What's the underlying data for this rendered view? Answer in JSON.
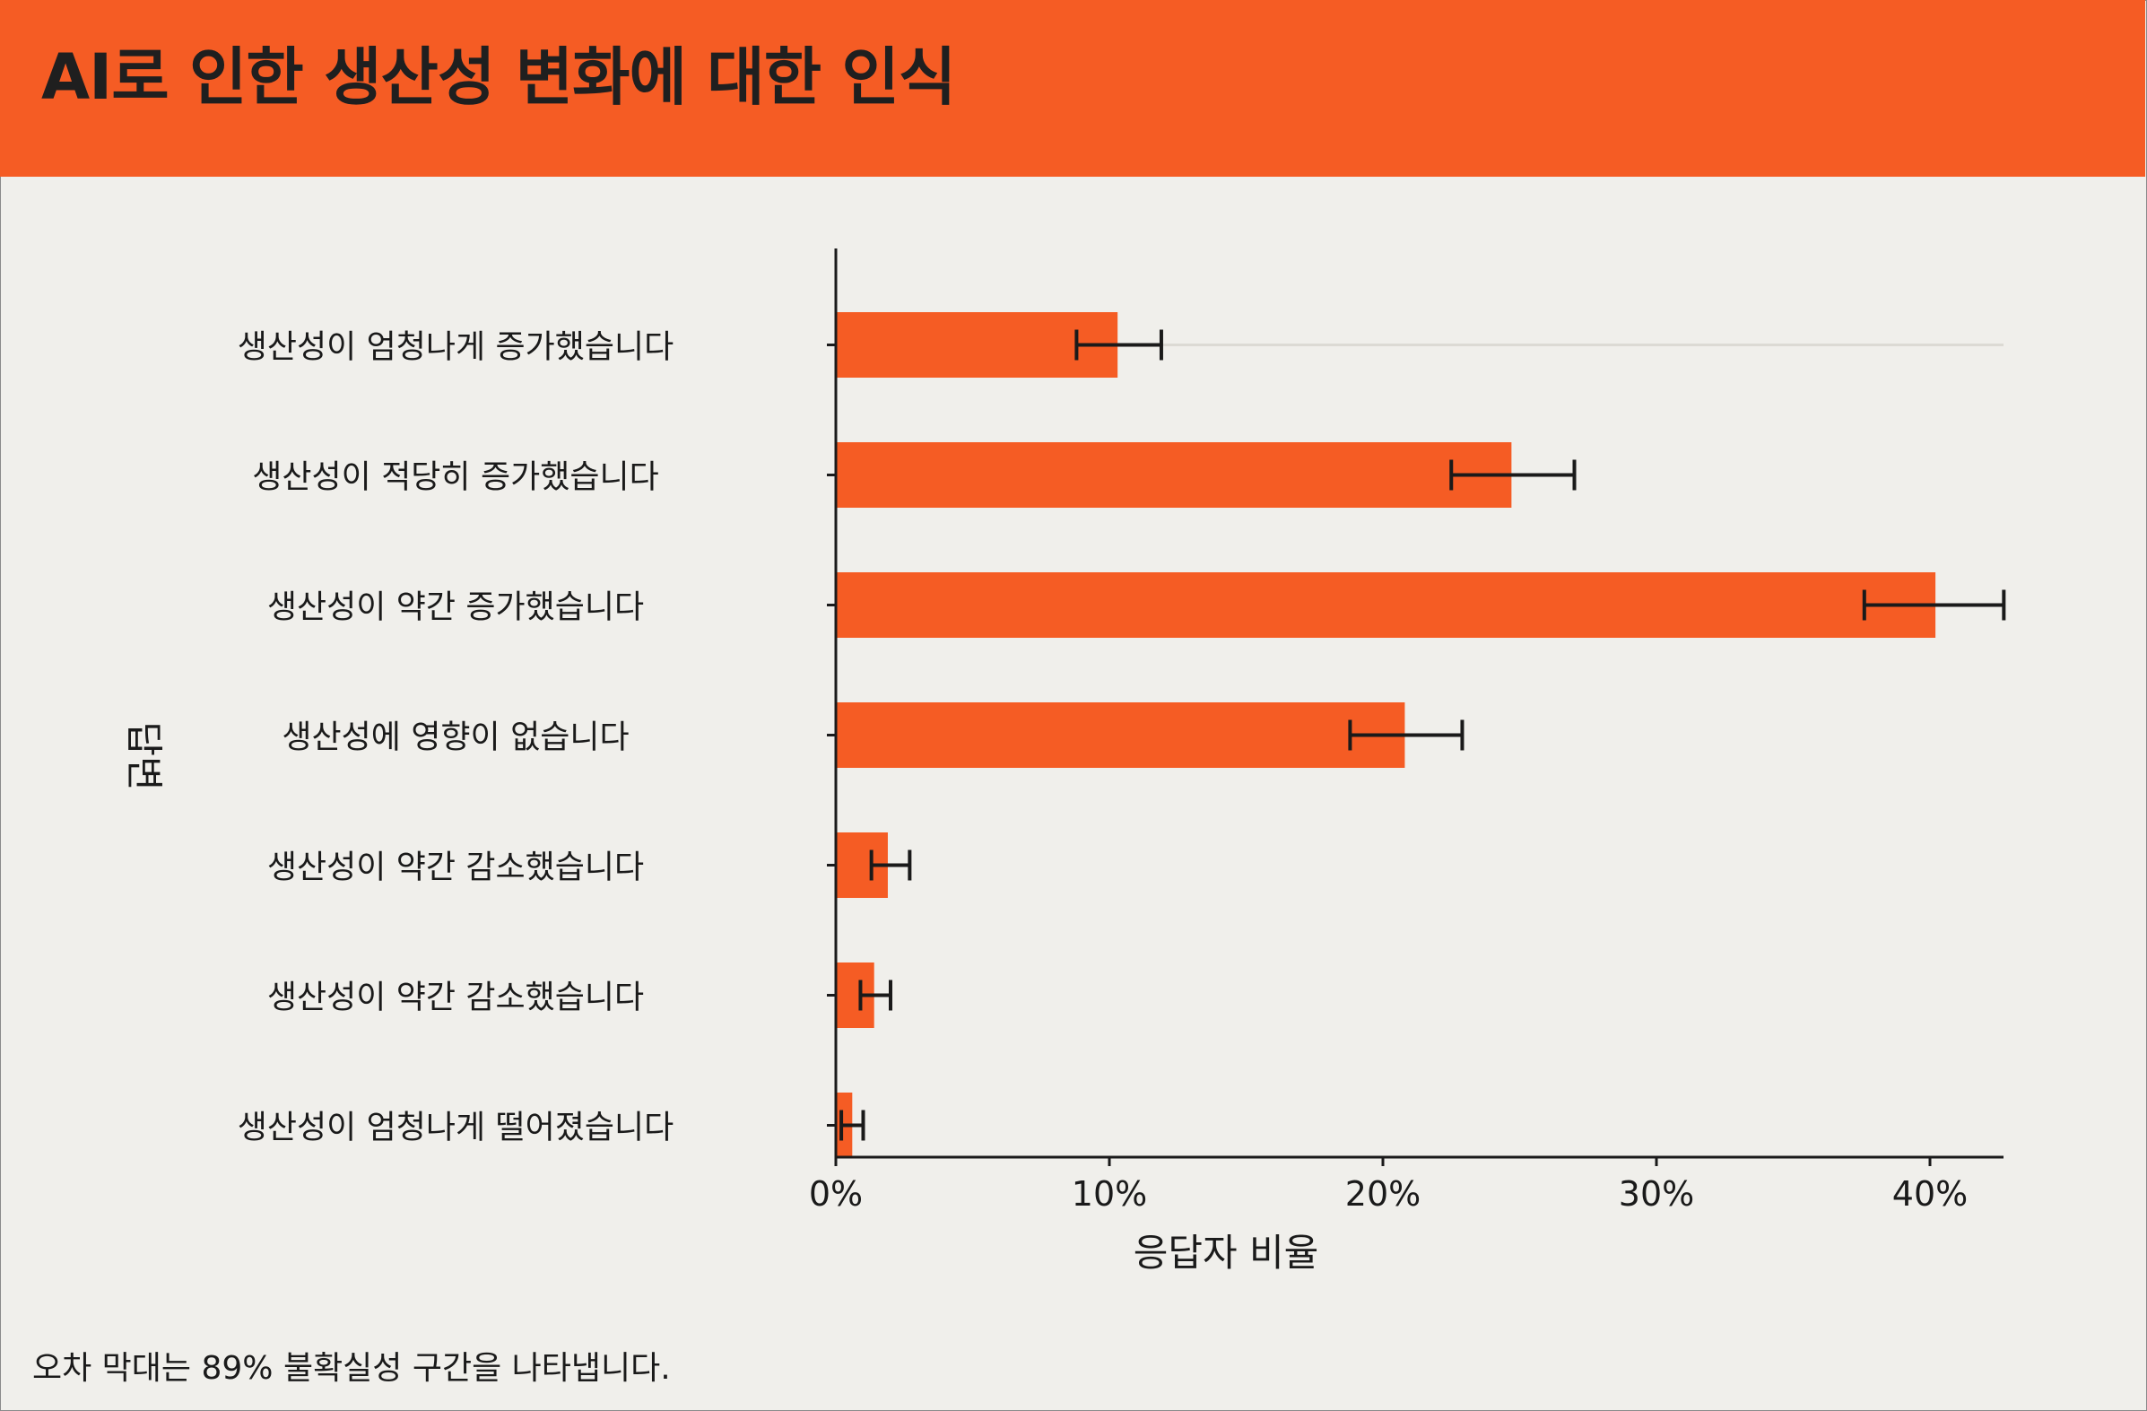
{
  "header": {
    "title": "AI로 인한 생산성 변화에 대한 인식",
    "background_color": "#f55c24"
  },
  "footnote": "오차 막대는 89% 불확실성 구간을 나타냅니다.",
  "chart_data": {
    "type": "bar",
    "orientation": "horizontal",
    "title": "AI로 인한 생산성 변화에 대한 인식",
    "xlabel": "응답자 비율",
    "ylabel": "답변",
    "xlim": [
      0,
      42.7
    ],
    "x_ticks": [
      "0%",
      "10%",
      "20%",
      "30%",
      "40%"
    ],
    "x_tick_values": [
      0,
      10,
      20,
      30,
      40
    ],
    "bar_color": "#f55c24",
    "error_bar_color": "#1a1a1a",
    "grid": false,
    "categories": [
      "생산성이 엄청나게 증가했습니다",
      "생산성이 적당히 증가했습니다",
      "생산성이 약간 증가했습니다",
      "생산성에 영향이 없습니다",
      "생산성이 약간 감소했습니다",
      "생산성이 약간 감소했습니다",
      "생산성이 엄청나게 떨어졌습니다"
    ],
    "values": [
      10.3,
      24.7,
      40.2,
      20.8,
      1.9,
      1.4,
      0.6
    ],
    "error_low": [
      8.8,
      22.5,
      37.6,
      18.8,
      1.3,
      0.9,
      0.2
    ],
    "error_high": [
      11.9,
      27.0,
      42.7,
      22.9,
      2.7,
      2.0,
      1.0
    ]
  }
}
